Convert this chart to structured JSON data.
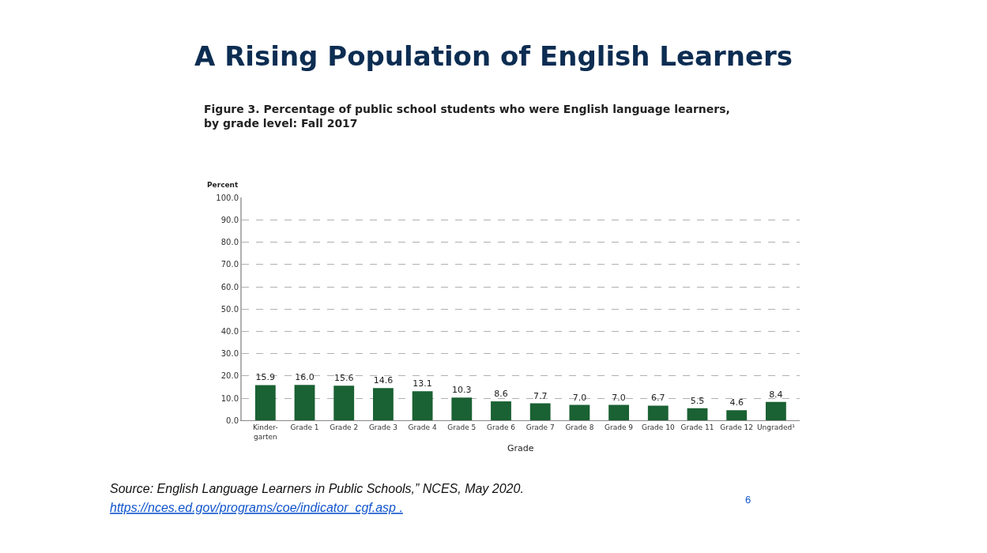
{
  "chart_data": {
    "type": "bar",
    "title": "A Rising Population of English Learners",
    "subtitle": "Figure 3. Percentage of public school students who were English language learners, by grade level: Fall 2017",
    "xlabel": "Grade",
    "ylabel": "Percent",
    "categories": [
      "Kinder-garten",
      "Grade 1",
      "Grade 2",
      "Grade 3",
      "Grade 4",
      "Grade 5",
      "Grade 6",
      "Grade 7",
      "Grade 8",
      "Grade 9",
      "Grade 10",
      "Grade 11",
      "Grade 12",
      "Ungraded¹"
    ],
    "values": [
      15.9,
      16.0,
      15.6,
      14.6,
      13.1,
      10.3,
      8.6,
      7.7,
      7.0,
      7.0,
      6.7,
      5.5,
      4.6,
      8.4
    ],
    "value_labels": [
      "15.9",
      "16.0",
      "15.6",
      "14.6",
      "13.1",
      "10.3",
      "8.6",
      "7.7",
      "7.0",
      "7.0",
      "6.7",
      "5.5",
      "4.6",
      "8.4"
    ],
    "color": "#1a6133",
    "grid": "y",
    "ylim": [
      0,
      100
    ],
    "yticks": [
      {
        "value": 0,
        "label": "0.0"
      },
      {
        "value": 10,
        "label": "10.0"
      },
      {
        "value": 20,
        "label": "20.0"
      },
      {
        "value": 30,
        "label": "30.0"
      },
      {
        "value": 40,
        "label": "40.0"
      },
      {
        "value": 50,
        "label": "50.0"
      },
      {
        "value": 60,
        "label": "60.0"
      },
      {
        "value": 70,
        "label": "70.0"
      },
      {
        "value": 80,
        "label": "80.0"
      },
      {
        "value": 90,
        "label": "90.0"
      },
      {
        "value": 100,
        "label": "100.0"
      }
    ],
    "annotations": [
      "Source: English Language Learners in Public Schools,” NCES, May 2020.",
      "https://nces.ed.gov/programs/coe/indicator_cgf.asp .",
      "6"
    ]
  }
}
